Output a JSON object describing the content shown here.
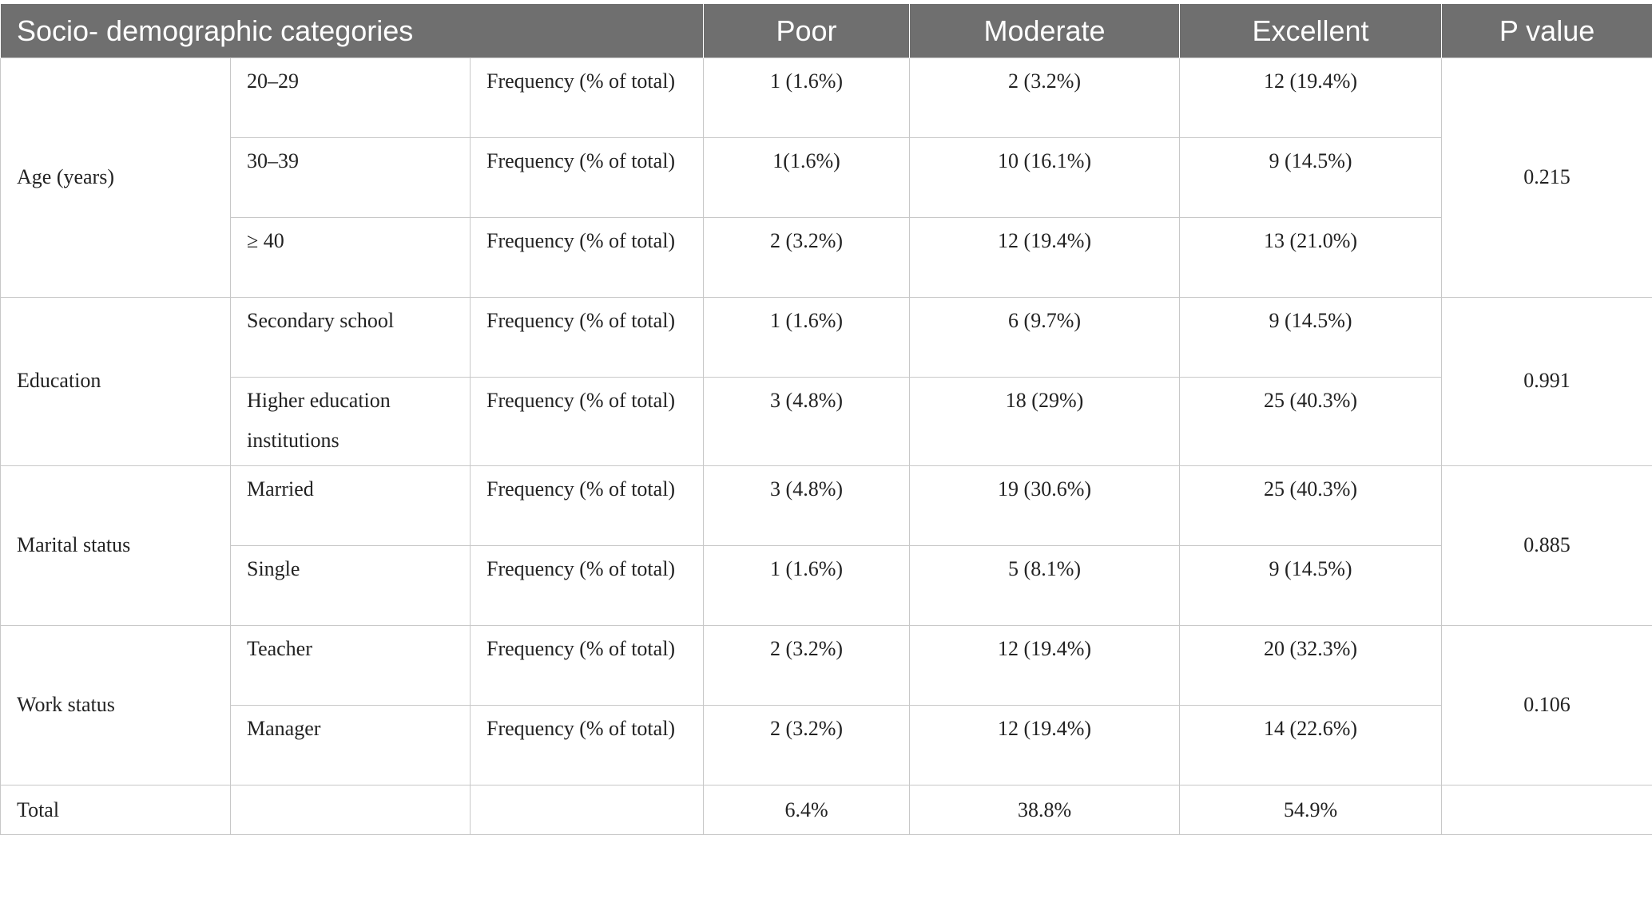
{
  "table": {
    "header": [
      "Socio- demographic categories",
      "Poor",
      "Moderate",
      "Excellent",
      "P value"
    ],
    "groups": [
      {
        "category": "Age (years)",
        "p_value": "0.215",
        "rows": [
          {
            "level": "20–29",
            "measure": "Frequency (% of total)",
            "poor": "1 (1.6%)",
            "moderate": "2 (3.2%)",
            "excellent": "12 (19.4%)"
          },
          {
            "level": "30–39",
            "measure": "Frequency (% of total)",
            "poor": "1(1.6%)",
            "moderate": "10 (16.1%)",
            "excellent": "9 (14.5%)"
          },
          {
            "level": "≥ 40",
            "measure": "Frequency (% of total)",
            "poor": "2 (3.2%)",
            "moderate": "12 (19.4%)",
            "excellent": "13 (21.0%)"
          }
        ]
      },
      {
        "category": "Education",
        "p_value": "0.991",
        "rows": [
          {
            "level": "Secondary school",
            "measure": "Frequency (% of total)",
            "poor": "1 (1.6%)",
            "moderate": "6 (9.7%)",
            "excellent": "9 (14.5%)"
          },
          {
            "level": "Higher education institutions",
            "measure": "Frequency (% of total)",
            "poor": "3 (4.8%)",
            "moderate": "18 (29%)",
            "excellent": "25 (40.3%)"
          }
        ]
      },
      {
        "category": "Marital status",
        "p_value": "0.885",
        "rows": [
          {
            "level": "Married",
            "measure": "Frequency (% of total)",
            "poor": "3 (4.8%)",
            "moderate": "19 (30.6%)",
            "excellent": "25 (40.3%)"
          },
          {
            "level": "Single",
            "measure": "Frequency (% of total)",
            "poor": "1 (1.6%)",
            "moderate": "5 (8.1%)",
            "excellent": "9 (14.5%)"
          }
        ]
      },
      {
        "category": "Work status",
        "p_value": "0.106",
        "rows": [
          {
            "level": "Teacher",
            "measure": "Frequency (% of total)",
            "poor": "2 (3.2%)",
            "moderate": "12 (19.4%)",
            "excellent": "20 (32.3%)"
          },
          {
            "level": "Manager",
            "measure": "Frequency (% of total)",
            "poor": "2 (3.2%)",
            "moderate": "12 (19.4%)",
            "excellent": "14 (22.6%)"
          }
        ]
      }
    ],
    "total": {
      "label": "Total",
      "poor": "6.4%",
      "moderate": "38.8%",
      "excellent": "54.9%"
    }
  }
}
